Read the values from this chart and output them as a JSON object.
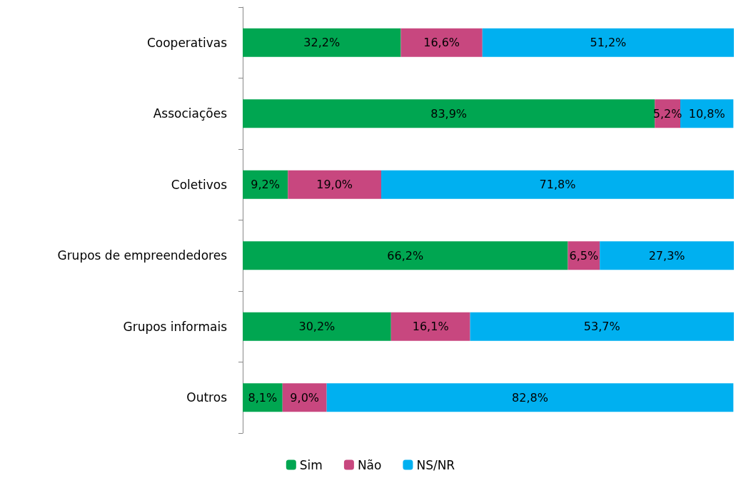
{
  "chart_data": {
    "type": "bar",
    "orientation": "horizontal",
    "stacked": true,
    "categories": [
      "Cooperativas",
      "Associações",
      "Coletivos",
      "Grupos de empreendedores",
      "Grupos informais",
      "Outros"
    ],
    "xlim": [
      0,
      100
    ],
    "tick_labels": "y",
    "legend": "bottom",
    "series": [
      {
        "name": "Sim",
        "color": "#00a651",
        "values": [
          32.2,
          83.9,
          9.2,
          66.2,
          30.2,
          8.1
        ],
        "value_labels": [
          "32,2%",
          "83,9%",
          "9,2%",
          "66,2%",
          "30,2%",
          "8,1%"
        ]
      },
      {
        "name": "Não",
        "color": "#c8477f",
        "values": [
          16.6,
          5.2,
          19.0,
          6.5,
          16.1,
          9.0
        ],
        "value_labels": [
          "16,6%",
          "5,2%",
          "19,0%",
          "6,5%",
          "16,1%",
          "9,0%"
        ]
      },
      {
        "name": "NS/NR",
        "color": "#00b0f0",
        "values": [
          51.2,
          10.8,
          71.8,
          27.3,
          53.7,
          82.8
        ],
        "value_labels": [
          "51,2%",
          "10,8%",
          "71,8%",
          "27,3%",
          "53,7%",
          "82,8%"
        ]
      }
    ]
  }
}
